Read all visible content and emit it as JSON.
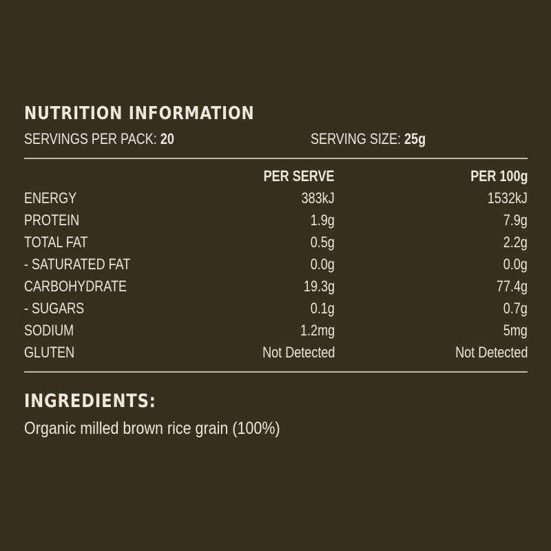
{
  "panel": {
    "title": "NUTRITION INFORMATION",
    "servings_label": "SERVINGS PER PACK:",
    "servings_value": "20",
    "size_label": "SERVING SIZE:",
    "size_value": "25g"
  },
  "table": {
    "headers": [
      "",
      "PER SERVE",
      "PER 100g"
    ],
    "rows": [
      {
        "label": "ENERGY",
        "per_serve": "383kJ",
        "per_100g": "1532kJ",
        "indent": false
      },
      {
        "label": "PROTEIN",
        "per_serve": "1.9g",
        "per_100g": "7.9g",
        "indent": false
      },
      {
        "label": "TOTAL FAT",
        "per_serve": "0.5g",
        "per_100g": "2.2g",
        "indent": false
      },
      {
        "label": "- SATURATED FAT",
        "per_serve": "0.0g",
        "per_100g": "0.0g",
        "indent": true
      },
      {
        "label": "CARBOHYDRATE",
        "per_serve": "19.3g",
        "per_100g": "77.4g",
        "indent": false
      },
      {
        "label": "- SUGARS",
        "per_serve": "0.1g",
        "per_100g": "0.7g",
        "indent": true
      },
      {
        "label": "SODIUM",
        "per_serve": "1.2mg",
        "per_100g": "5mg",
        "indent": false
      },
      {
        "label": "GLUTEN",
        "per_serve": "Not Detected",
        "per_100g": "Not Detected",
        "indent": false
      }
    ]
  },
  "ingredients": {
    "title": "INGREDIENTS:",
    "text": "Organic milled brown rice grain (100%)"
  },
  "colors": {
    "background": "#38301f",
    "text": "#ece8df",
    "rule": "#d8d2c6"
  }
}
